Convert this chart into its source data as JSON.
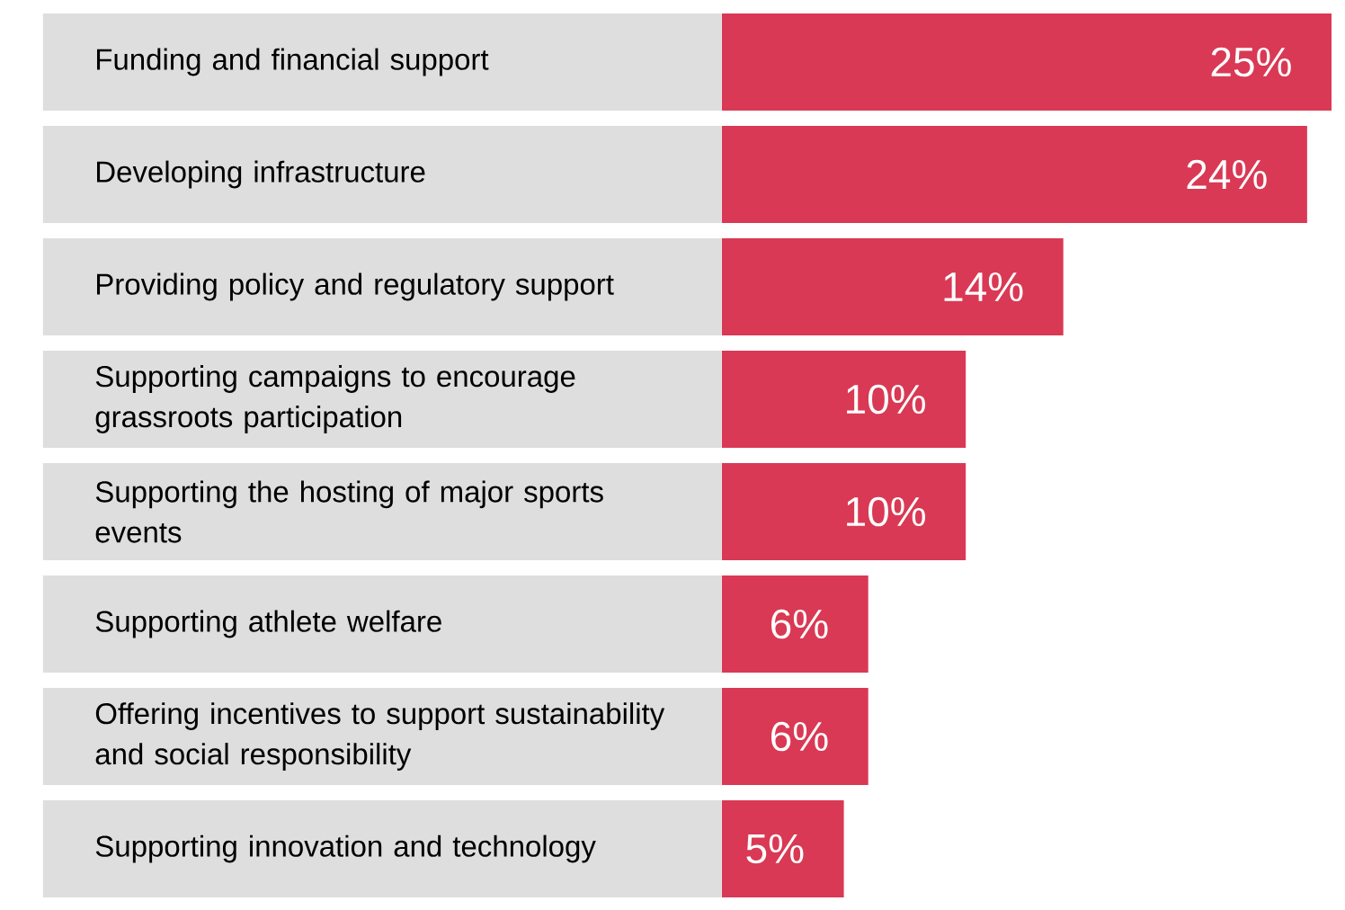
{
  "chart_data": {
    "type": "bar",
    "orientation": "horizontal",
    "categories": [
      "Funding and financial support",
      "Developing infrastructure",
      "Providing policy and regulatory support",
      "Supporting campaigns to encourage grassroots participation",
      "Supporting the hosting of major sports events",
      "Supporting athlete welfare",
      "Offering incentives to support sustainability and social responsibility",
      "Supporting innovation and technology"
    ],
    "values": [
      25,
      24,
      14,
      10,
      10,
      6,
      6,
      5
    ],
    "value_labels": [
      "25%",
      "24%",
      "14%",
      "10%",
      "10%",
      "6%",
      "6%",
      "5%"
    ],
    "color": "#d93954",
    "xlim": [
      0,
      25
    ]
  }
}
